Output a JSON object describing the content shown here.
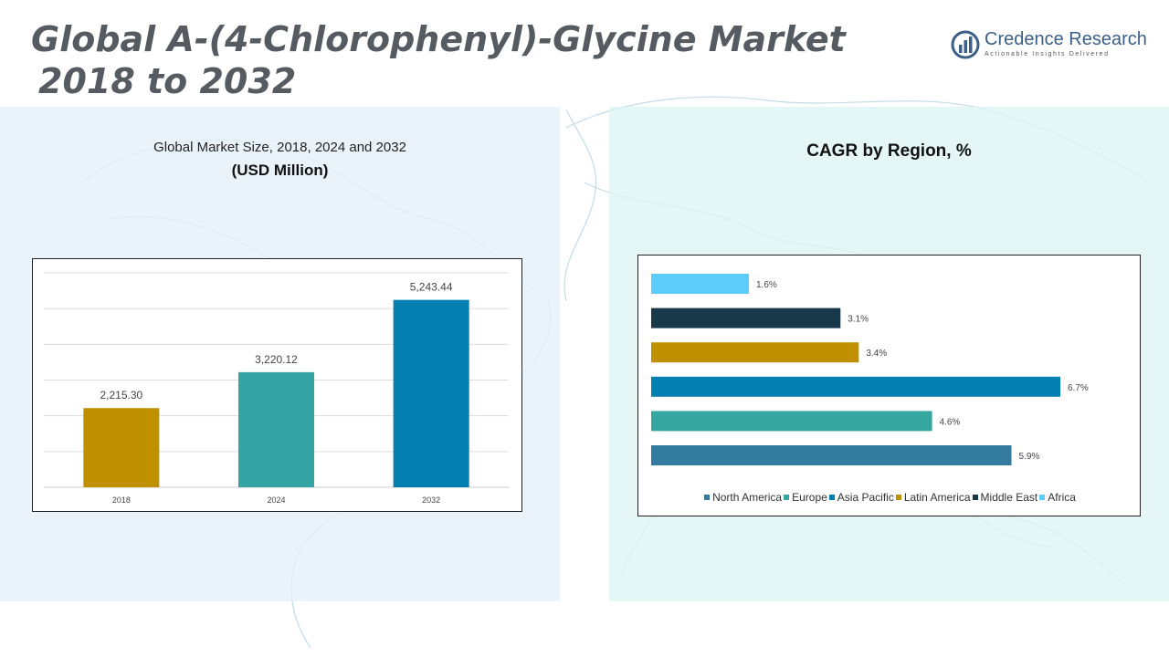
{
  "header": {
    "title_line1": "Global A-(4-Chlorophenyl)-Glycine Market",
    "title_line2": "2018 to 2032"
  },
  "logo": {
    "name": "Credence Research",
    "tagline": "Actionable Insights Delivered",
    "icon": "bar-chart-logo-icon",
    "color": "#3b5f88"
  },
  "left_panel": {
    "subtitle": "Global Market Size, 2018, 2024 and 2032",
    "unit": "(USD Million)"
  },
  "right_panel": {
    "subtitle": "CAGR by Region, %"
  },
  "chart_data": [
    {
      "type": "bar",
      "categories": [
        "2018",
        "2024",
        "2032"
      ],
      "values": [
        2215.3,
        3220.12,
        5243.44
      ],
      "data_labels": [
        "2,215.30",
        "3,220.12",
        "5,243.44"
      ],
      "colors": [
        "#bf9000",
        "#33a3a3",
        "#0480b0"
      ],
      "ylim": [
        0,
        6000
      ],
      "grid": true
    },
    {
      "type": "bar",
      "orientation": "horizontal",
      "categories": [
        "North America",
        "Europe",
        "Asia Pacific",
        "Latin America",
        "Middle East",
        "Africa"
      ],
      "values": [
        5.9,
        4.6,
        6.7,
        3.4,
        3.1,
        1.6
      ],
      "data_labels": [
        "5.9%",
        "4.6%",
        "6.7%",
        "3.4%",
        "3.1%",
        "1.6%"
      ],
      "colors": [
        "#337ca0",
        "#36a6a0",
        "#0480b0",
        "#bf9000",
        "#17394a",
        "#5ccdf8"
      ],
      "xlim": [
        0,
        7
      ],
      "legend": "bottom"
    }
  ]
}
